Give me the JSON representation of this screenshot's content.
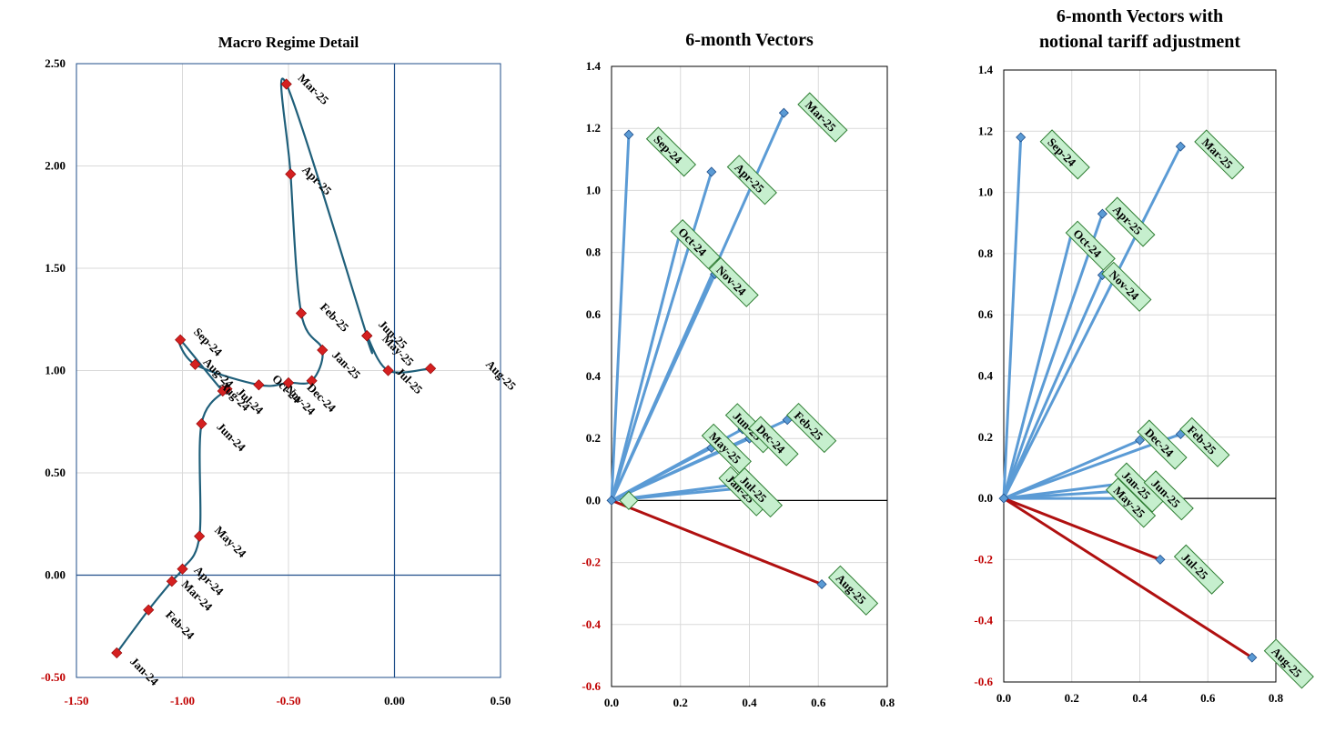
{
  "chart_data": [
    {
      "type": "line",
      "title": "Macro Regime Detail",
      "xlim": [
        -1.5,
        0.5
      ],
      "ylim": [
        -0.5,
        2.5
      ],
      "xticks": [
        -1.5,
        -1.0,
        -0.5,
        0.0,
        0.5
      ],
      "yticks": [
        -0.5,
        0.0,
        0.5,
        1.0,
        1.5,
        2.0,
        2.5
      ],
      "xtick_labels": [
        "-1.50",
        "-1.00",
        "-0.50",
        "0.00",
        "0.50"
      ],
      "ytick_labels": [
        "-0.50",
        "0.00",
        "0.50",
        "1.00",
        "1.50",
        "2.00",
        "2.50"
      ],
      "negative_tick_color": "#c00000",
      "positive_tick_color": "#000000",
      "line_color": "#1f5f7a",
      "marker_color": "#d42020",
      "axis_color": "#1f4e8a",
      "grid": true,
      "points": [
        {
          "label": "Jan-24",
          "x": -1.31,
          "y": -0.38
        },
        {
          "label": "Feb-24",
          "x": -1.16,
          "y": -0.17
        },
        {
          "label": "Mar-24",
          "x": -1.05,
          "y": -0.03
        },
        {
          "label": "Apr-24",
          "x": -1.0,
          "y": 0.03
        },
        {
          "label": "May-24",
          "x": -0.92,
          "y": 0.19
        },
        {
          "label": "Jun-24",
          "x": -0.91,
          "y": 0.74
        },
        {
          "label": "Jul-24",
          "x": -0.79,
          "y": 0.91
        },
        {
          "label": "Aug-24",
          "x": -0.81,
          "y": 0.9
        },
        {
          "label": "Sep-24",
          "x": -1.01,
          "y": 1.15
        },
        {
          "label": "Aug-24",
          "x": -0.94,
          "y": 1.03
        },
        {
          "label": "Oct-24",
          "x": -0.64,
          "y": 0.93
        },
        {
          "label": "Nov-24",
          "x": -0.5,
          "y": 0.94
        },
        {
          "label": "Dec-24",
          "x": -0.39,
          "y": 0.95
        },
        {
          "label": "Jan-25",
          "x": -0.34,
          "y": 1.1
        },
        {
          "label": "Feb-25",
          "x": -0.44,
          "y": 1.28
        },
        {
          "label": "Apr-25",
          "x": -0.49,
          "y": 1.96
        },
        {
          "label": "Mar-25",
          "x": -0.51,
          "y": 2.4
        },
        {
          "label": "May-25",
          "x": -0.13,
          "y": 1.17
        },
        {
          "label": "Jun-25",
          "x": -0.13,
          "y": 1.17
        },
        {
          "label": "Jul-25",
          "x": -0.03,
          "y": 1.0
        },
        {
          "label": "Aug-25",
          "x": 0.17,
          "y": 1.01
        }
      ]
    },
    {
      "type": "scatter",
      "title": "6-month Vectors",
      "xlim": [
        0,
        0.8
      ],
      "ylim": [
        -0.6,
        1.4
      ],
      "xticks": [
        0,
        0.2,
        0.4,
        0.6,
        0.8
      ],
      "yticks": [
        -0.6,
        -0.4,
        -0.2,
        0,
        0.2,
        0.4,
        0.6,
        0.8,
        1.0,
        1.2,
        1.4
      ],
      "xtick_labels": [
        "0.0",
        "0.2",
        "0.4",
        "0.6",
        "0.8"
      ],
      "ytick_labels": [
        "-0.6",
        "-0.4",
        "-0.2",
        "0.0",
        "0.2",
        "0.4",
        "0.6",
        "0.8",
        "1.0",
        "1.2",
        "1.4"
      ],
      "negative_tick_color": "#c00000",
      "positive_tick_color": "#000000",
      "vector_color": "#5b9bd5",
      "negative_vector_color": "#b01010",
      "label_fill": "#c6efce",
      "label_border": "#2e7d32",
      "grid": true,
      "vectors": [
        {
          "label": "Sep-24",
          "x": 0.05,
          "y": 1.18
        },
        {
          "label": "Mar-25",
          "x": 0.5,
          "y": 1.25
        },
        {
          "label": "Apr-25",
          "x": 0.29,
          "y": 1.06
        },
        {
          "label": "Oct-24",
          "x": 0.2,
          "y": 0.87
        },
        {
          "label": "Nov-24",
          "x": 0.3,
          "y": 0.73
        },
        {
          "label": "Feb-25",
          "x": 0.51,
          "y": 0.26
        },
        {
          "label": "Jun-25",
          "x": 0.38,
          "y": 0.23
        },
        {
          "label": "Dec-24",
          "x": 0.4,
          "y": 0.2
        },
        {
          "label": "May-25",
          "x": 0.29,
          "y": 0.17
        },
        {
          "label": "Jan-25",
          "x": 0.35,
          "y": 0.05
        },
        {
          "label": "Jul-25",
          "x": 0.38,
          "y": 0.04
        },
        {
          "label": "Aug-25",
          "x": 0.61,
          "y": -0.27
        }
      ],
      "origin_markers": [
        0.0,
        0.05
      ]
    },
    {
      "type": "scatter",
      "title": "6-month Vectors with notional tariff adjustment",
      "title_lines": [
        "6-month Vectors with",
        "notional tariff adjustment"
      ],
      "xlim": [
        0,
        0.8
      ],
      "ylim": [
        -0.6,
        1.4
      ],
      "xticks": [
        0,
        0.2,
        0.4,
        0.6,
        0.8
      ],
      "yticks": [
        -0.6,
        -0.4,
        -0.2,
        0,
        0.2,
        0.4,
        0.6,
        0.8,
        1.0,
        1.2,
        1.4
      ],
      "xtick_labels": [
        "0.0",
        "0.2",
        "0.4",
        "0.6",
        "0.8"
      ],
      "ytick_labels": [
        "-0.6",
        "-0.4",
        "-0.2",
        "0.0",
        "0.2",
        "0.4",
        "0.6",
        "0.8",
        "1.0",
        "1.2",
        "1.4"
      ],
      "negative_tick_color": "#c00000",
      "positive_tick_color": "#000000",
      "vector_color": "#5b9bd5",
      "negative_vector_color": "#b01010",
      "label_fill": "#c6efce",
      "label_border": "#2e7d32",
      "grid": true,
      "vectors": [
        {
          "label": "Sep-24",
          "x": 0.05,
          "y": 1.18
        },
        {
          "label": "Mar-25",
          "x": 0.52,
          "y": 1.15
        },
        {
          "label": "Apr-25",
          "x": 0.29,
          "y": 0.93
        },
        {
          "label": "Oct-24",
          "x": 0.2,
          "y": 0.87
        },
        {
          "label": "Nov-24",
          "x": 0.29,
          "y": 0.73
        },
        {
          "label": "Feb-25",
          "x": 0.52,
          "y": 0.21
        },
        {
          "label": "Dec-24",
          "x": 0.4,
          "y": 0.19
        },
        {
          "label": "Jan-25",
          "x": 0.36,
          "y": 0.05
        },
        {
          "label": "Jun-25",
          "x": 0.43,
          "y": 0.03
        },
        {
          "label": "May-25",
          "x": 0.34,
          "y": 0.0
        },
        {
          "label": "Jul-25",
          "x": 0.46,
          "y": -0.2
        },
        {
          "label": "Aug-25",
          "x": 0.73,
          "y": -0.52
        }
      ],
      "origin_markers": [
        0.0
      ]
    }
  ]
}
